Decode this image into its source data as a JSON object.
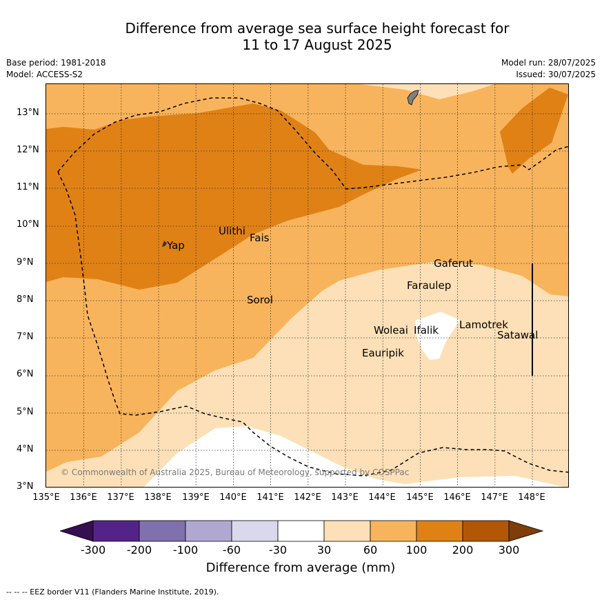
{
  "title_line1": "Difference from average sea surface height forecast for",
  "title_line2": "11 to 17 August 2025",
  "base_period": "Base period: 1981-2018",
  "model": "Model: ACCESS-S2",
  "model_run": "Model run: 28/07/2025",
  "issued": "Issued: 30/07/2025",
  "y_ticks": [
    "13°N",
    "12°N",
    "11°N",
    "10°N",
    "9°N",
    "8°N",
    "7°N",
    "6°N",
    "5°N",
    "4°N",
    "3°N"
  ],
  "x_ticks": [
    "135°E",
    "136°E",
    "137°E",
    "138°E",
    "139°E",
    "140°E",
    "141°E",
    "142°E",
    "143°E",
    "144°E",
    "145°E",
    "146°E",
    "147°E",
    "148°E"
  ],
  "places": {
    "yap": "Yap",
    "ulithi": "Ulithi",
    "fais": "Fais",
    "sorol": "Sorol",
    "gaferut": "Gaferut",
    "faraulep": "Faraulep",
    "woleai": "Woleai",
    "ifalik": "Ifalik",
    "lamotrek": "Lamotrek",
    "satawal": "Satawal",
    "eauripik": "Eauripik"
  },
  "copyright": "© Commonwealth of Australia 2025, Bureau of Meteorology, supported by COSPPac",
  "colorbar": {
    "ticks": [
      "-300",
      "-200",
      "-100",
      "-60",
      "-30",
      "30",
      "60",
      "100",
      "200",
      "300"
    ],
    "colors": [
      "#350f4f",
      "#54238a",
      "#8070ad",
      "#b1a8d2",
      "#d9d8ec",
      "#ffffff",
      "#fde0b7",
      "#f8b45c",
      "#e08116",
      "#b35707",
      "#7e3d09"
    ],
    "title": "Difference from average (mm)"
  },
  "footer": "--  --  -- EEZ border V11 (Flanders Marine Institute, 2019)."
}
